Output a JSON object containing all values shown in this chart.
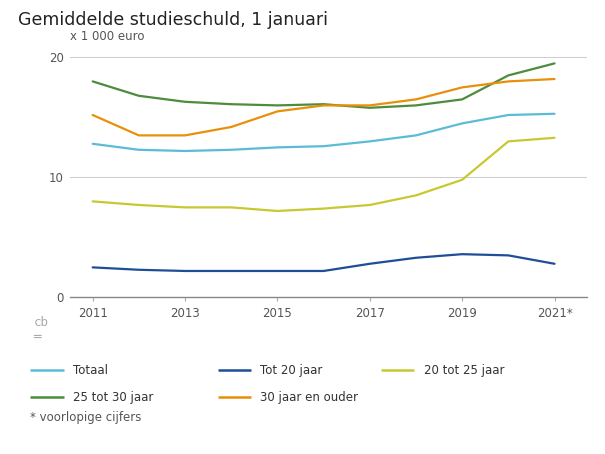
{
  "title": "Gemiddelde studieschuld, 1 januari",
  "ylabel": "x 1 000 euro",
  "bg_white": "#ffffff",
  "bg_gray": "#ebebeb",
  "ylim": [
    0,
    21
  ],
  "yticks": [
    0,
    10,
    20
  ],
  "years": [
    2011,
    2012,
    2013,
    2014,
    2015,
    2016,
    2017,
    2018,
    2019,
    2020,
    2021
  ],
  "xtick_labels": [
    "2011",
    "2013",
    "2015",
    "2017",
    "2019",
    "2021*"
  ],
  "xtick_positions": [
    2011,
    2013,
    2015,
    2017,
    2019,
    2021
  ],
  "series": {
    "Totaal": {
      "color": "#5bbcd6",
      "data": [
        12.8,
        12.3,
        12.2,
        12.3,
        12.5,
        12.6,
        13.0,
        13.5,
        14.5,
        15.2,
        15.3
      ]
    },
    "Tot 20 jaar": {
      "color": "#1f4e96",
      "data": [
        2.5,
        2.3,
        2.2,
        2.2,
        2.2,
        2.2,
        2.8,
        3.3,
        3.6,
        3.5,
        2.8
      ]
    },
    "20 tot 25 jaar": {
      "color": "#c8c832",
      "data": [
        8.0,
        7.7,
        7.5,
        7.5,
        7.2,
        7.4,
        7.7,
        8.5,
        9.8,
        13.0,
        13.3
      ]
    },
    "25 tot 30 jaar": {
      "color": "#4d8c3c",
      "data": [
        18.0,
        16.8,
        16.3,
        16.1,
        16.0,
        16.1,
        15.8,
        16.0,
        16.5,
        18.5,
        19.5
      ]
    },
    "30 jaar en ouder": {
      "color": "#e8900a",
      "data": [
        15.2,
        13.5,
        13.5,
        14.2,
        15.5,
        16.0,
        16.0,
        16.5,
        17.5,
        18.0,
        18.2
      ]
    }
  },
  "footnote": "* voorlopige cijfers",
  "legend_order": [
    "Totaal",
    "Tot 20 jaar",
    "20 tot 25 jaar",
    "25 tot 30 jaar",
    "30 jaar en ouder"
  ]
}
